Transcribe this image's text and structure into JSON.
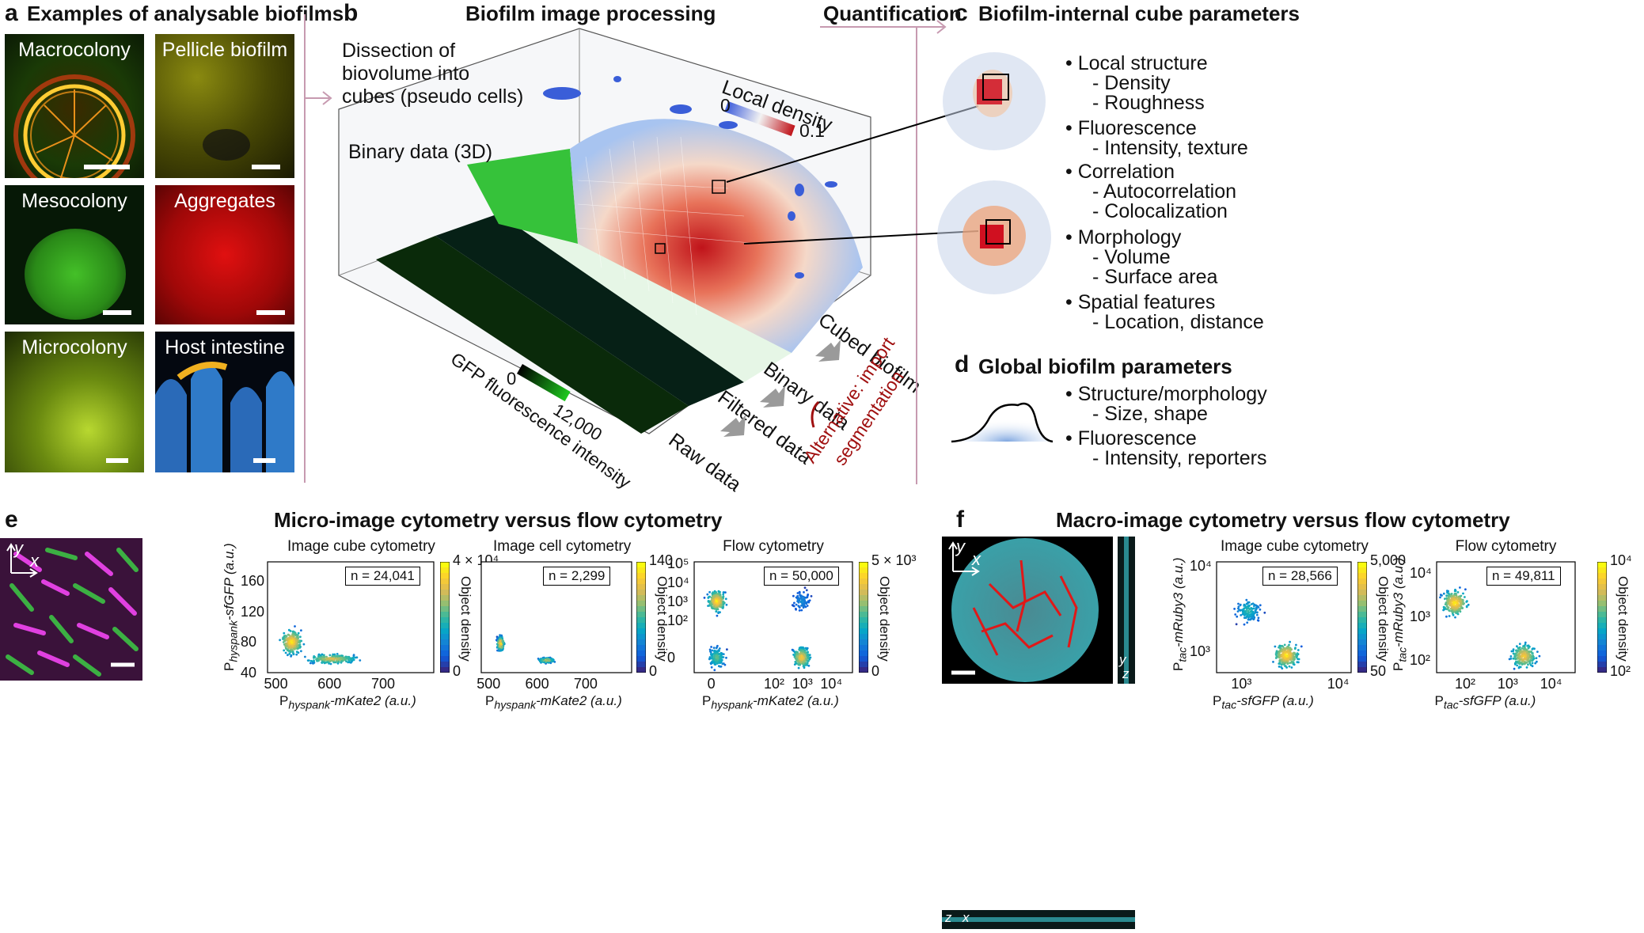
{
  "panel_a": {
    "letter": "a",
    "title": "Examples of analysable biofilms",
    "tiles": [
      {
        "label": "Macrocolony"
      },
      {
        "label": "Pellicle biofilm"
      },
      {
        "label": "Mesocolony"
      },
      {
        "label": "Aggregates"
      },
      {
        "label": "Microcolony"
      },
      {
        "label": "Host intestine"
      }
    ]
  },
  "panel_b": {
    "letter": "b",
    "title": "Biofilm image processing",
    "dissection_line1": "Dissection of",
    "dissection_line2": "biovolume into",
    "dissection_line3": "cubes (pseudo cells)",
    "binary_3d": "Binary data (3D)",
    "local_density": "Local density",
    "ld_min": "0",
    "ld_max": "0.1",
    "gfp_min": "0",
    "gfp_max": "12,000",
    "gfp_label": "GFP fluorescence intensity",
    "raw": "Raw data",
    "filtered": "Filtered data",
    "binary": "Binary data",
    "cubed": "Cubed biofilm",
    "alt_line1": "Alternative: import",
    "alt_line2": "segmentation"
  },
  "quantification": "Quantification",
  "panel_c": {
    "letter": "c",
    "title": "Biofilm-internal cube parameters",
    "items": [
      {
        "head": "• Local structure",
        "subs": [
          "- Density",
          "- Roughness"
        ]
      },
      {
        "head": "• Fluorescence",
        "subs": [
          "- Intensity, texture"
        ]
      },
      {
        "head": "• Correlation",
        "subs": [
          "- Autocorrelation",
          "- Colocalization"
        ]
      },
      {
        "head": "• Morphology",
        "subs": [
          "- Volume",
          "- Surface area"
        ]
      },
      {
        "head": "• Spatial features",
        "subs": [
          "- Location, distance"
        ]
      }
    ]
  },
  "panel_d": {
    "letter": "d",
    "title": "Global biofilm parameters",
    "items": [
      {
        "head": "• Structure/morphology",
        "subs": [
          "- Size, shape"
        ]
      },
      {
        "head": "• Fluorescence",
        "subs": [
          "- Intensity, reporters"
        ]
      }
    ]
  },
  "panel_e": {
    "letter": "e",
    "title": "Micro-image cytometry versus flow cytometry",
    "axis_y": "y",
    "axis_x": "x"
  },
  "panel_f": {
    "letter": "f",
    "title": "Macro-image cytometry versus flow cytometry",
    "axis_y": "y",
    "axis_x": "x",
    "side_y": "y",
    "side_z": "z",
    "bottom_z": "z",
    "bottom_x": "x"
  },
  "colorbar_label": "Object density",
  "chart_data": [
    {
      "type": "scatter",
      "id": "e1",
      "title": "Image cube cytometry",
      "xlabel_main": "P",
      "xlabel_sub": "hyspank",
      "xlabel_rest": "-mKate2 (a.u.)",
      "ylabel_main": "P",
      "ylabel_sub": "hyspank",
      "ylabel_rest": "-sfGFP (a.u.)",
      "xlim": [
        480,
        790
      ],
      "ylim": [
        40,
        185
      ],
      "xticks": [
        500,
        600,
        700
      ],
      "yticks": [
        40,
        80,
        120,
        160
      ],
      "n_label": "n = 24,041",
      "colorbar_max": "4 × 10⁴",
      "colorbar_min": "0",
      "clusters": [
        {
          "x": 525,
          "y": 80,
          "spread_x": 18,
          "spread_y": 14,
          "density": 1.0
        },
        {
          "x": 600,
          "y": 58,
          "spread_x": 45,
          "spread_y": 6,
          "density": 0.8
        }
      ]
    },
    {
      "type": "scatter",
      "id": "e2",
      "title": "Image cell cytometry",
      "xlabel_main": "P",
      "xlabel_sub": "hyspank",
      "xlabel_rest": "-mKate2 (a.u.)",
      "xlim": [
        480,
        790
      ],
      "ylim": [
        40,
        185
      ],
      "xticks": [
        500,
        600,
        700
      ],
      "yticks": [],
      "n_label": "n = 2,299",
      "colorbar_max": "140",
      "colorbar_min": "0",
      "clusters": [
        {
          "x": 520,
          "y": 78,
          "spread_x": 6,
          "spread_y": 8,
          "density": 1.0
        },
        {
          "x": 615,
          "y": 56,
          "spread_x": 15,
          "spread_y": 3,
          "density": 0.8
        }
      ]
    },
    {
      "type": "scatter",
      "id": "e3",
      "title": "Flow cytometry",
      "xlabel_main": "P",
      "xlabel_sub": "hyspank",
      "xlabel_rest": "-mKate2 (a.u.)",
      "xscale": "symlog",
      "yscale": "symlog",
      "xticks_text": [
        "0",
        "10²",
        "10³",
        "10⁴"
      ],
      "yticks_text": [
        "0",
        "10²",
        "10³",
        "10⁴",
        "10⁵"
      ],
      "n_label": "n = 50,000",
      "colorbar_max": "5 × 10³",
      "colorbar_min": "0",
      "clusters": [
        {
          "x": "0",
          "y": "10³",
          "density": 1.0
        },
        {
          "x": "0",
          "y": "0",
          "density": 0.6
        },
        {
          "x": "10³",
          "y": "0",
          "density": 0.9
        },
        {
          "x": "10³",
          "y": "10³",
          "density": 0.3
        }
      ]
    },
    {
      "type": "scatter",
      "id": "f1",
      "title": "Image cube cytometry",
      "xlabel_main": "P",
      "xlabel_sub": "tac",
      "xlabel_rest": "-sfGFP (a.u.)",
      "ylabel_main": "P",
      "ylabel_sub": "tac",
      "ylabel_rest": "-mRuby3 (a.u.)",
      "xscale": "log",
      "yscale": "log",
      "xticks_text": [
        "10³",
        "10⁴"
      ],
      "yticks_text": [
        "10³",
        "10⁴"
      ],
      "n_label": "n = 28,566",
      "colorbar_max": "5,000",
      "colorbar_min": "50",
      "clusters": [
        {
          "x": 3000,
          "y": 900,
          "density": 1.0
        },
        {
          "x": 1200,
          "y": 3000,
          "density": 0.5
        }
      ]
    },
    {
      "type": "scatter",
      "id": "f2",
      "title": "Flow cytometry",
      "xlabel_main": "P",
      "xlabel_sub": "tac",
      "xlabel_rest": "-sfGFP (a.u.)",
      "ylabel_main": "P",
      "ylabel_sub": "tac",
      "ylabel_rest": "-mRuby3 (a.u.)",
      "xscale": "log",
      "yscale": "log",
      "xticks_text": [
        "10²",
        "10³",
        "10⁴"
      ],
      "yticks_text": [
        "10²",
        "10³",
        "10⁴"
      ],
      "n_label": "n = 49,811",
      "colorbar_max": "10⁴",
      "colorbar_min": "10²",
      "clusters": [
        {
          "x": 60,
          "y": 2000,
          "density": 1.0
        },
        {
          "x": 2500,
          "y": 120,
          "density": 0.9
        }
      ]
    }
  ]
}
